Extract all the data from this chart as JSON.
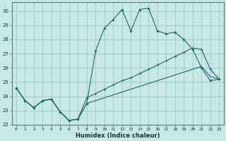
{
  "xlabel": "Humidex (Indice chaleur)",
  "bg_color": "#c8e8e4",
  "grid_color": "#a0c8c4",
  "line_color": "#1a6b65",
  "xlim": [
    -0.5,
    23.5
  ],
  "ylim": [
    22,
    30.6
  ],
  "xticks": [
    0,
    1,
    2,
    3,
    4,
    5,
    6,
    7,
    8,
    9,
    10,
    11,
    12,
    13,
    14,
    15,
    16,
    17,
    18,
    19,
    20,
    21,
    22,
    23
  ],
  "yticks": [
    22,
    23,
    24,
    25,
    26,
    27,
    28,
    29,
    30
  ],
  "line1_x": [
    0,
    1,
    2,
    3,
    4,
    5,
    6,
    7,
    8,
    9,
    10,
    11,
    12,
    13,
    14,
    15,
    16,
    17,
    18,
    19,
    20,
    21,
    22,
    23
  ],
  "line1_y": [
    24.6,
    23.7,
    23.2,
    23.7,
    23.8,
    22.9,
    22.3,
    22.4,
    23.5,
    27.2,
    28.8,
    29.4,
    30.1,
    28.6,
    30.1,
    30.2,
    28.6,
    28.4,
    28.5,
    28.0,
    27.3,
    26.0,
    25.1,
    25.2
  ],
  "line2_x": [
    0,
    1,
    2,
    3,
    4,
    5,
    6,
    7,
    8,
    9,
    10,
    11,
    12,
    13,
    14,
    15,
    16,
    17,
    18,
    19,
    20,
    21,
    22,
    23
  ],
  "line2_y": [
    24.6,
    23.7,
    23.2,
    23.7,
    23.8,
    22.9,
    22.3,
    22.4,
    23.9,
    24.2,
    24.5,
    24.8,
    25.1,
    25.3,
    25.6,
    25.9,
    26.2,
    26.5,
    26.8,
    27.1,
    27.4,
    27.3,
    25.9,
    25.2
  ],
  "line3_x": [
    0,
    1,
    2,
    3,
    4,
    5,
    6,
    7,
    8,
    9,
    10,
    11,
    12,
    13,
    14,
    15,
    16,
    17,
    18,
    19,
    20,
    21,
    22,
    23
  ],
  "line3_y": [
    24.6,
    23.7,
    23.2,
    23.7,
    23.8,
    22.9,
    22.3,
    22.4,
    23.5,
    23.7,
    23.9,
    24.1,
    24.3,
    24.5,
    24.7,
    24.9,
    25.1,
    25.3,
    25.5,
    25.7,
    25.9,
    26.1,
    25.4,
    25.2
  ]
}
